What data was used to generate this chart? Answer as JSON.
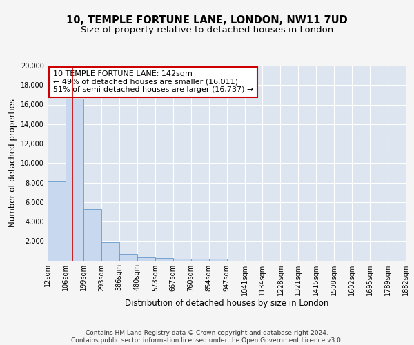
{
  "title": "10, TEMPLE FORTUNE LANE, LONDON, NW11 7UD",
  "subtitle": "Size of property relative to detached houses in London",
  "xlabel": "Distribution of detached houses by size in London",
  "ylabel": "Number of detached properties",
  "bar_edges": [
    12,
    106,
    199,
    293,
    386,
    480,
    573,
    667,
    760,
    854,
    947,
    1041,
    1134,
    1228,
    1321,
    1415,
    1508,
    1602,
    1695,
    1789,
    1882
  ],
  "bar_heights": [
    8100,
    16600,
    5300,
    1850,
    700,
    320,
    230,
    210,
    180,
    150,
    0,
    0,
    0,
    0,
    0,
    0,
    0,
    0,
    0,
    0
  ],
  "bar_color": "#c8d8ee",
  "bar_edge_color": "#6699cc",
  "red_line_x": 142,
  "annotation_text": "10 TEMPLE FORTUNE LANE: 142sqm\n← 49% of detached houses are smaller (16,011)\n51% of semi-detached houses are larger (16,737) →",
  "annotation_box_color": "#ffffff",
  "annotation_box_edge": "#cc0000",
  "fig_bg_color": "#f5f5f5",
  "plot_bg_color": "#dde6f0",
  "ylim": [
    0,
    20000
  ],
  "yticks": [
    0,
    2000,
    4000,
    6000,
    8000,
    10000,
    12000,
    14000,
    16000,
    18000,
    20000
  ],
  "tick_labels": [
    "12sqm",
    "106sqm",
    "199sqm",
    "293sqm",
    "386sqm",
    "480sqm",
    "573sqm",
    "667sqm",
    "760sqm",
    "854sqm",
    "947sqm",
    "1041sqm",
    "1134sqm",
    "1228sqm",
    "1321sqm",
    "1415sqm",
    "1508sqm",
    "1602sqm",
    "1695sqm",
    "1789sqm",
    "1882sqm"
  ],
  "footer_text": "Contains HM Land Registry data © Crown copyright and database right 2024.\nContains public sector information licensed under the Open Government Licence v3.0.",
  "red_line_color": "#cc0000",
  "title_fontsize": 10.5,
  "subtitle_fontsize": 9.5,
  "axis_label_fontsize": 8.5,
  "tick_fontsize": 7,
  "annotation_fontsize": 8,
  "footer_fontsize": 6.5
}
